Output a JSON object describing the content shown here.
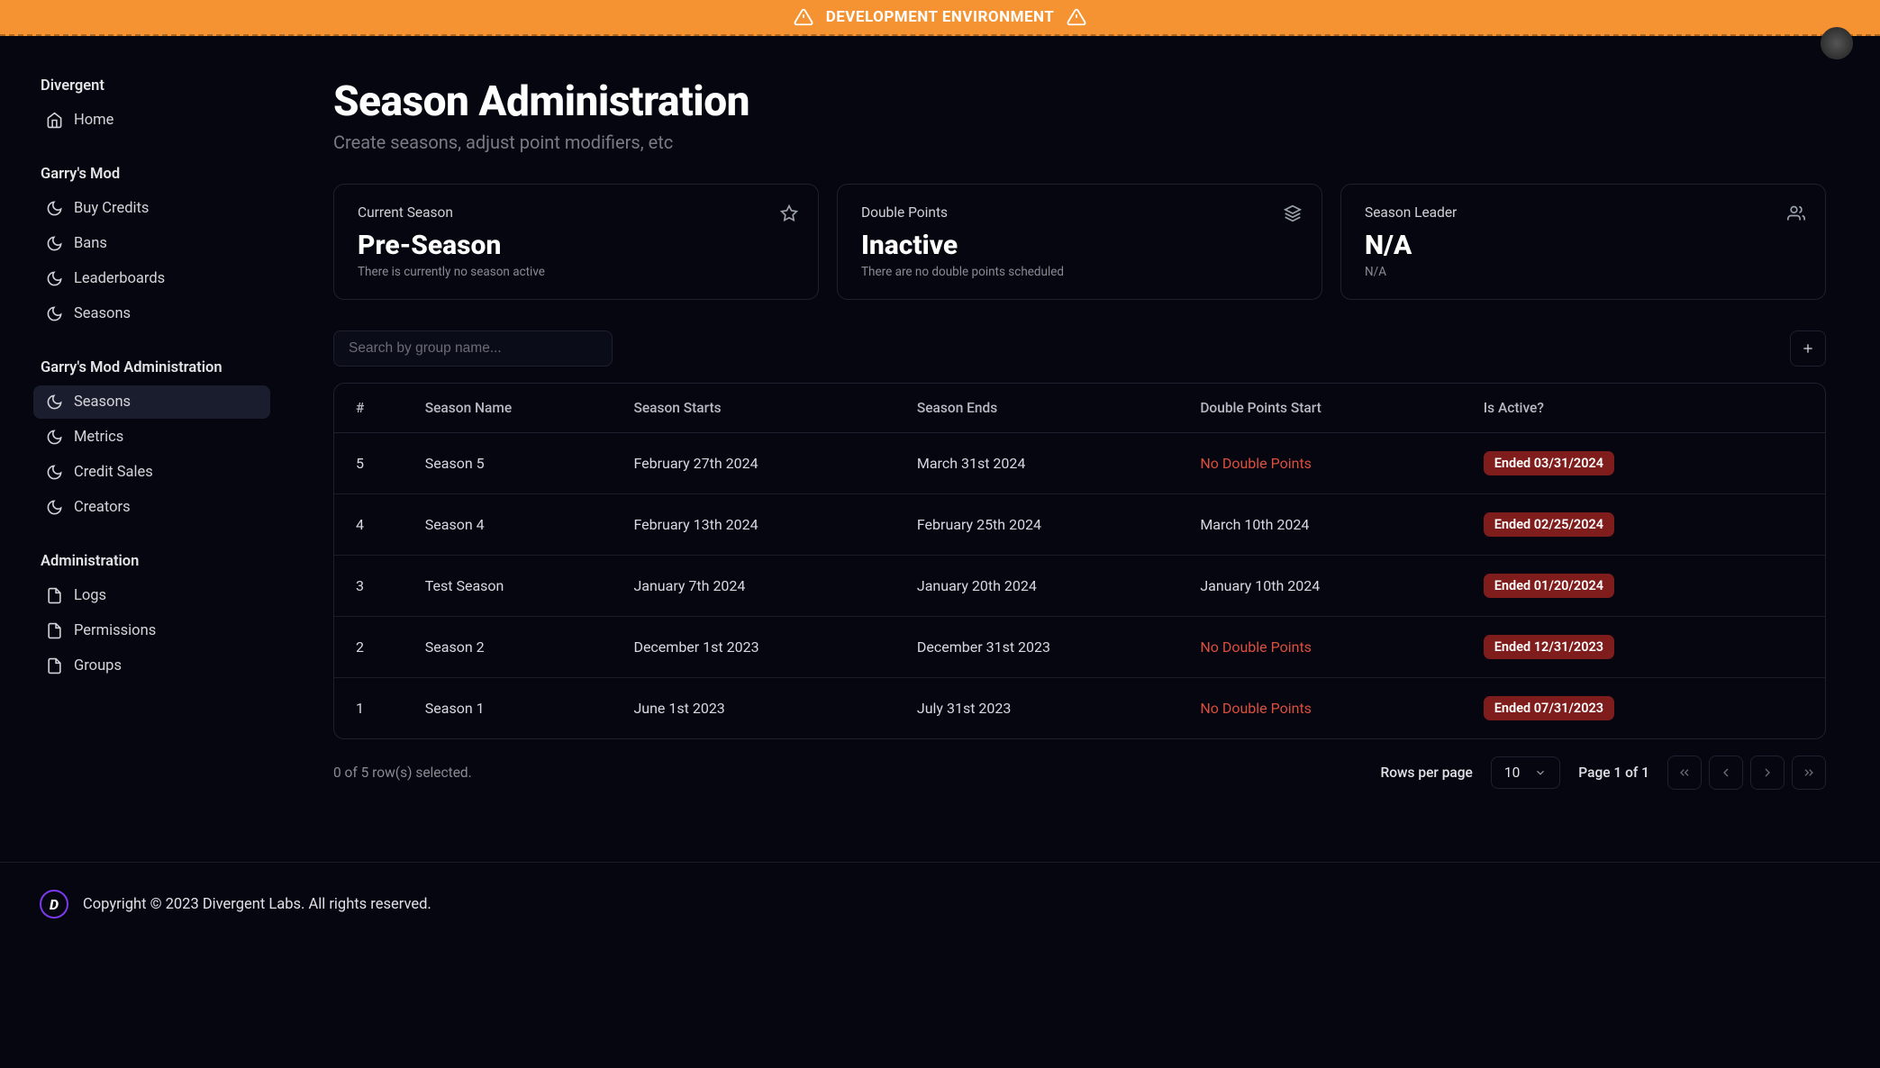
{
  "colors": {
    "banner_bg": "#f59332",
    "bg": "#05060f",
    "border": "#1e2030",
    "active_bg": "#1a1d2e",
    "danger_text": "#dc4e3f",
    "badge_bg": "#7f1d1d",
    "accent": "#7c3aed"
  },
  "banner": {
    "text": "DEVELOPMENT ENVIRONMENT"
  },
  "sidebar": {
    "groups": [
      {
        "title": "Divergent",
        "items": [
          {
            "icon": "home",
            "label": "Home"
          }
        ]
      },
      {
        "title": "Garry's Mod",
        "items": [
          {
            "icon": "moon",
            "label": "Buy Credits"
          },
          {
            "icon": "moon",
            "label": "Bans"
          },
          {
            "icon": "moon",
            "label": "Leaderboards"
          },
          {
            "icon": "moon",
            "label": "Seasons"
          }
        ]
      },
      {
        "title": "Garry's Mod Administration",
        "items": [
          {
            "icon": "moon",
            "label": "Seasons",
            "active": true
          },
          {
            "icon": "moon",
            "label": "Metrics"
          },
          {
            "icon": "moon",
            "label": "Credit Sales"
          },
          {
            "icon": "moon",
            "label": "Creators"
          }
        ]
      },
      {
        "title": "Administration",
        "items": [
          {
            "icon": "file",
            "label": "Logs"
          },
          {
            "icon": "file",
            "label": "Permissions"
          },
          {
            "icon": "file",
            "label": "Groups"
          }
        ]
      }
    ]
  },
  "page": {
    "title": "Season Administration",
    "subtitle": "Create seasons, adjust point modifiers, etc"
  },
  "cards": [
    {
      "label": "Current Season",
      "value": "Pre-Season",
      "sub": "There is currently no season active",
      "icon": "star"
    },
    {
      "label": "Double Points",
      "value": "Inactive",
      "sub": "There are no double points scheduled",
      "icon": "layers"
    },
    {
      "label": "Season Leader",
      "value": "N/A",
      "sub": "N/A",
      "icon": "users"
    }
  ],
  "search": {
    "placeholder": "Search by group name..."
  },
  "table": {
    "columns": [
      "#",
      "Season Name",
      "Season Starts",
      "Season Ends",
      "Double Points Start",
      "Is Active?"
    ],
    "col_widths": [
      "5%",
      "14%",
      "19%",
      "19%",
      "19%",
      "24%"
    ],
    "rows": [
      {
        "num": "5",
        "name": "Season 5",
        "starts": "February 27th 2024",
        "ends": "March 31st 2024",
        "double": "No Double Points",
        "double_none": true,
        "status": "Ended 03/31/2024"
      },
      {
        "num": "4",
        "name": "Season 4",
        "starts": "February 13th 2024",
        "ends": "February 25th 2024",
        "double": "March 10th 2024",
        "double_none": false,
        "status": "Ended 02/25/2024"
      },
      {
        "num": "3",
        "name": "Test Season",
        "starts": "January 7th 2024",
        "ends": "January 20th 2024",
        "double": "January 10th 2024",
        "double_none": false,
        "status": "Ended 01/20/2024"
      },
      {
        "num": "2",
        "name": "Season 2",
        "starts": "December 1st 2023",
        "ends": "December 31st 2023",
        "double": "No Double Points",
        "double_none": true,
        "status": "Ended 12/31/2023"
      },
      {
        "num": "1",
        "name": "Season 1",
        "starts": "June 1st 2023",
        "ends": "July 31st 2023",
        "double": "No Double Points",
        "double_none": true,
        "status": "Ended 07/31/2023"
      }
    ]
  },
  "pagination": {
    "selected_text": "0 of 5 row(s) selected.",
    "rows_label": "Rows per page",
    "rows_value": "10",
    "page_info": "Page 1 of 1"
  },
  "footer": {
    "text": "Copyright © 2023 Divergent Labs. All rights reserved."
  }
}
